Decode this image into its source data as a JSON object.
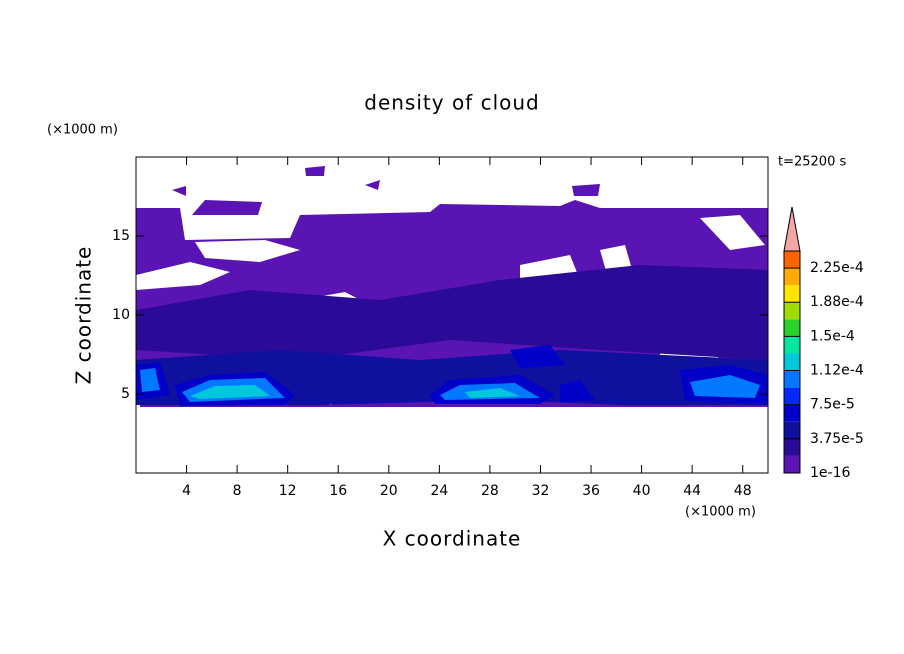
{
  "chart_data": {
    "type": "contour",
    "title": "density of cloud",
    "x_label": "X coordinate",
    "y_label": "Z coordinate",
    "x_unit": "(×1000 m)",
    "y_unit": "(×1000 m)",
    "time_label": "t=25200 s",
    "xlim": [
      0,
      50
    ],
    "ylim": [
      0,
      20
    ],
    "xticks": [
      4,
      8,
      12,
      16,
      20,
      24,
      28,
      32,
      36,
      40,
      44,
      48
    ],
    "yticks": [
      5,
      10,
      15
    ],
    "clim": [
      0,
      0.00024375
    ],
    "colors": [
      "#5a14b4",
      "#2a0a96",
      "#10109e",
      "#0000c8",
      "#0028ff",
      "#0078ff",
      "#00c8dc",
      "#00e6a0",
      "#28d228",
      "#a0dc00",
      "#ffe600",
      "#ffaa00",
      "#ff6400"
    ],
    "extend_color": "#f4a6a6",
    "colorbar_ticks": [
      {
        "value": 1e-16,
        "label": "1e-16"
      },
      {
        "value": 3.75e-05,
        "label": "3.75e-5"
      },
      {
        "value": 7.5e-05,
        "label": "7.5e-5"
      },
      {
        "value": 0.0001125,
        "label": "1.12e-4"
      },
      {
        "value": 0.00015,
        "label": "1.5e-4"
      },
      {
        "value": 0.0001875,
        "label": "1.88e-4"
      },
      {
        "value": 0.000225,
        "label": "2.25e-4"
      }
    ]
  }
}
